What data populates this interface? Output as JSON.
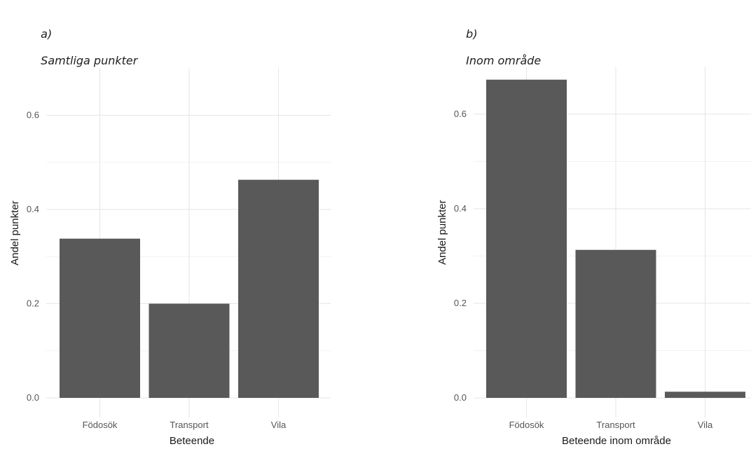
{
  "panels": [
    {
      "letter": "a)",
      "title": "Samtliga punkter"
    },
    {
      "letter": "b)",
      "title": "Inom område"
    }
  ],
  "chart_data": [
    {
      "type": "bar",
      "title": "",
      "categories": [
        "Födosök",
        "Transport",
        "Vila"
      ],
      "values": [
        0.338,
        0.2,
        0.463
      ],
      "xlabel": "Beteende",
      "ylabel": "Andel punkter",
      "ylim": [
        0,
        0.7
      ],
      "yticks": [
        "0.0",
        "0.2",
        "0.4",
        "0.6"
      ],
      "grid": true,
      "bar_color": "#595959"
    },
    {
      "type": "bar",
      "title": "",
      "categories": [
        "Födosök",
        "Transport",
        "Vila"
      ],
      "values": [
        0.673,
        0.313,
        0.013
      ],
      "xlabel": "Beteende inom område",
      "ylabel": "Andel punkter",
      "ylim": [
        0,
        0.7
      ],
      "yticks": [
        "0.0",
        "0.2",
        "0.4",
        "0.6"
      ],
      "grid": true,
      "bar_color": "#595959"
    }
  ]
}
